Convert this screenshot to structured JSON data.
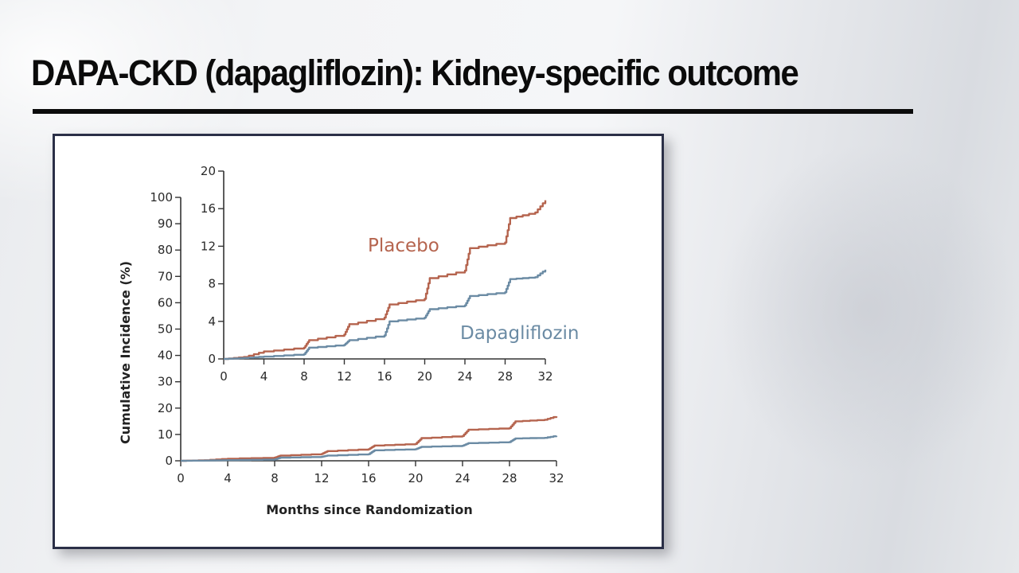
{
  "slide": {
    "title": "DAPA-CKD (dapagliflozin): Kidney-specific outcome"
  },
  "colors": {
    "placebo": "#b5644e",
    "dapagliflozin": "#6b8ba4",
    "axis": "#333333",
    "panel_border": "#2b2f47"
  },
  "chart_data": [
    {
      "id": "main",
      "type": "line",
      "step": true,
      "title": "",
      "xlabel": "Months since Randomization",
      "ylabel": "Cumulative Incidence (%)",
      "xlim": [
        0,
        32
      ],
      "ylim": [
        0,
        100
      ],
      "xticks": [
        0,
        4,
        8,
        12,
        16,
        20,
        24,
        28,
        32
      ],
      "yticks": [
        0,
        10,
        20,
        30,
        40,
        50,
        60,
        70,
        80,
        90,
        100
      ],
      "grid": false,
      "x": [
        0,
        2,
        4,
        8,
        8.5,
        12,
        12.5,
        16,
        16.5,
        20,
        20.5,
        24,
        24.5,
        28,
        28.5,
        31,
        32
      ],
      "series": [
        {
          "name": "Placebo",
          "values": [
            0,
            0.2,
            0.8,
            1.2,
            2.0,
            2.6,
            3.7,
            4.4,
            5.8,
            6.4,
            8.6,
            9.4,
            11.8,
            12.4,
            15.0,
            15.6,
            16.9
          ]
        },
        {
          "name": "Dapagliflozin",
          "values": [
            0,
            0.1,
            0.25,
            0.5,
            1.2,
            1.5,
            2.0,
            2.5,
            4.0,
            4.4,
            5.3,
            5.7,
            6.7,
            7.1,
            8.5,
            8.7,
            9.5
          ]
        }
      ]
    },
    {
      "id": "inset",
      "type": "line",
      "step": true,
      "title": "",
      "xlabel": "",
      "ylabel": "",
      "xlim": [
        0,
        32
      ],
      "ylim": [
        0,
        20
      ],
      "xticks": [
        0,
        4,
        8,
        12,
        16,
        20,
        24,
        28,
        32
      ],
      "yticks": [
        0,
        4,
        8,
        12,
        16,
        20
      ],
      "grid": false,
      "x": [
        0,
        2,
        4,
        8,
        8.5,
        12,
        12.5,
        16,
        16.5,
        20,
        20.5,
        24,
        24.5,
        28,
        28.5,
        31,
        32
      ],
      "series": [
        {
          "name": "Placebo",
          "values": [
            0,
            0.2,
            0.8,
            1.2,
            2.0,
            2.6,
            3.7,
            4.4,
            5.8,
            6.4,
            8.6,
            9.4,
            11.8,
            12.4,
            15.0,
            15.6,
            16.9
          ]
        },
        {
          "name": "Dapagliflozin",
          "values": [
            0,
            0.1,
            0.25,
            0.5,
            1.2,
            1.5,
            2.0,
            2.5,
            4.0,
            4.4,
            5.3,
            5.7,
            6.7,
            7.1,
            8.5,
            8.7,
            9.5
          ]
        }
      ],
      "annotations": [
        {
          "text": "Placebo",
          "series": "Placebo"
        },
        {
          "text": "Dapagliflozin",
          "series": "Dapagliflozin"
        }
      ]
    }
  ]
}
